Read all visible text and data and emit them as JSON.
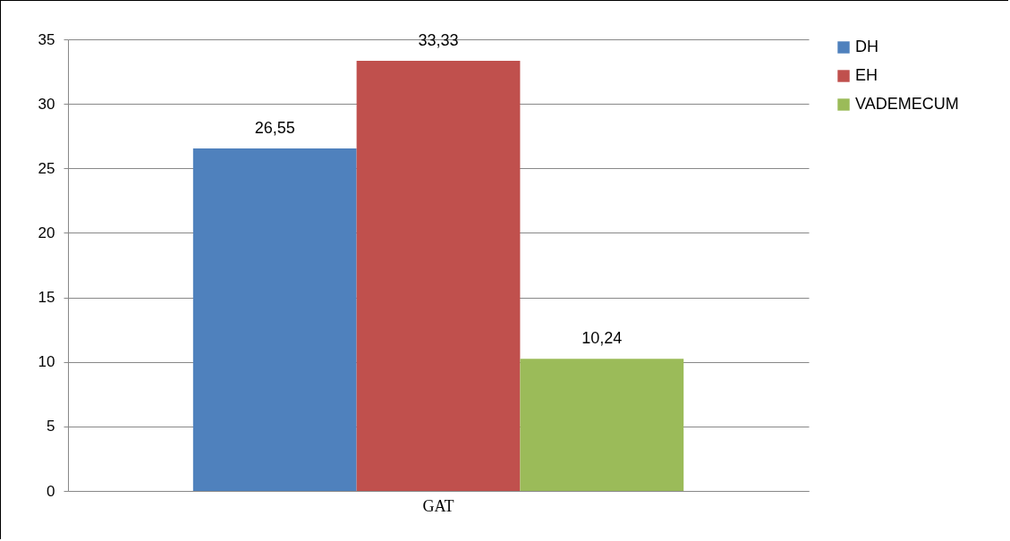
{
  "chart_data": {
    "type": "bar",
    "categories": [
      "GAT"
    ],
    "series": [
      {
        "name": "DH",
        "color": "#4f81bd",
        "values": [
          26.55
        ],
        "value_labels": [
          "26,55"
        ]
      },
      {
        "name": "EH",
        "color": "#c0504d",
        "values": [
          33.33
        ],
        "value_labels": [
          "33,33"
        ]
      },
      {
        "name": "VADEMECUM",
        "color": "#9bbb59",
        "values": [
          10.24
        ],
        "value_labels": [
          "10,24"
        ]
      }
    ],
    "ylim": [
      0,
      35
    ],
    "yticks": [
      0,
      5,
      10,
      15,
      20,
      25,
      30,
      35
    ],
    "grid": "y",
    "legend": "right"
  }
}
